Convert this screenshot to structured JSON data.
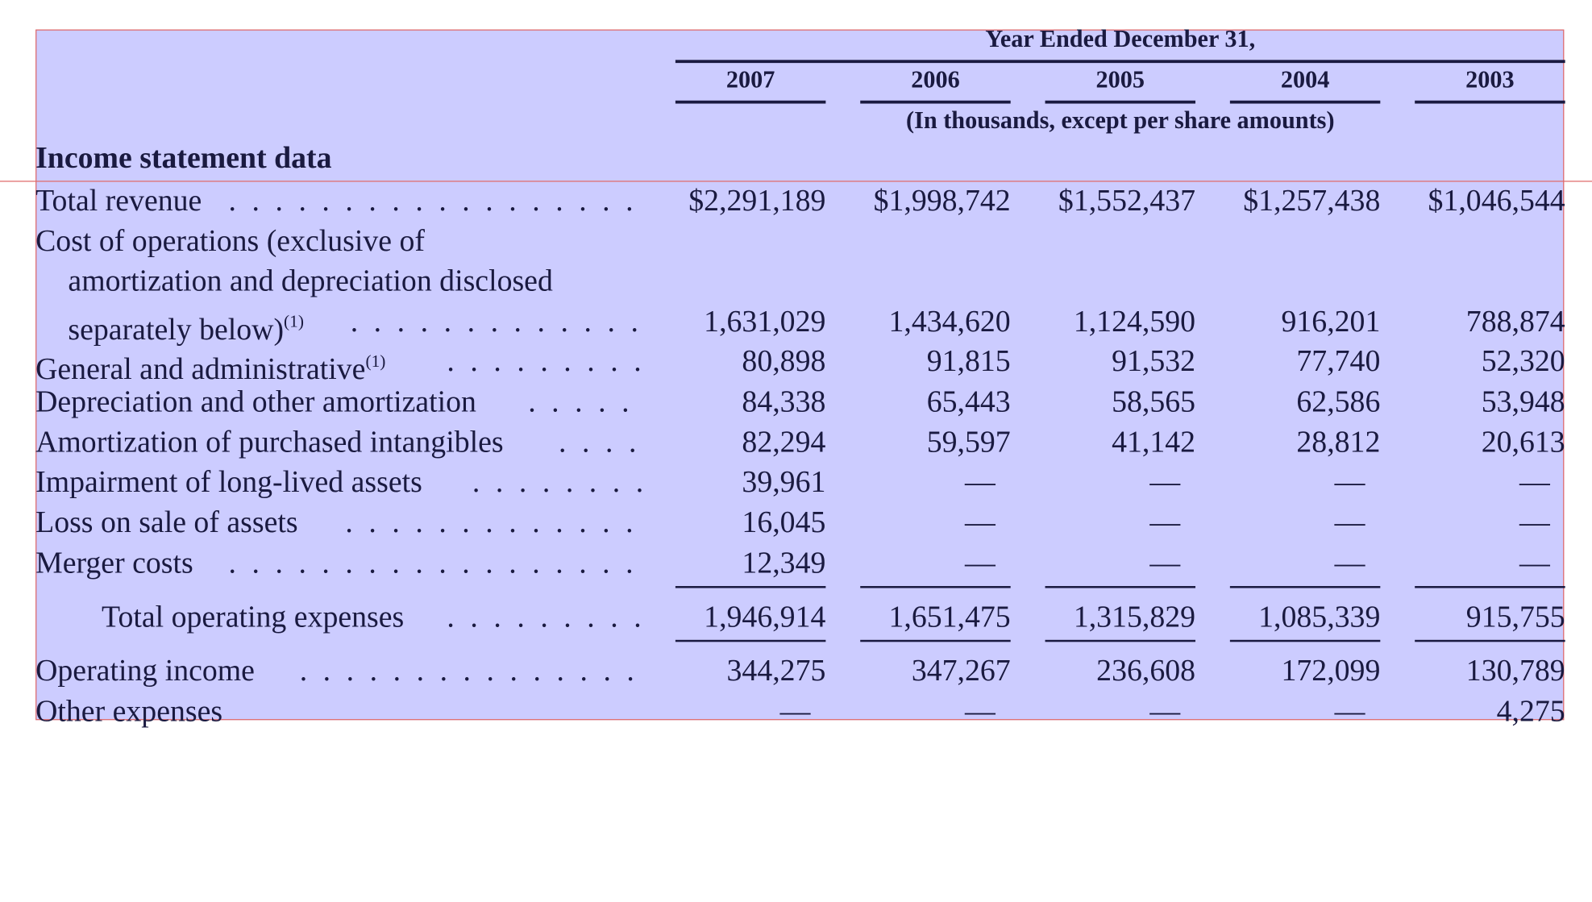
{
  "header": {
    "group_label": "Year Ended December 31,",
    "years": [
      "2007",
      "2006",
      "2005",
      "2004",
      "2003"
    ],
    "units_note": "(In thousands, except per share amounts)"
  },
  "section_title": "Income statement data",
  "rows": [
    {
      "label": "Total revenue",
      "values": [
        "$2,291,189",
        "$1,998,742",
        "$1,552,437",
        "$1,257,438",
        "$1,046,544"
      ]
    },
    {
      "label_lines": [
        "Cost of operations (exclusive of",
        "amortization and depreciation disclosed",
        "separately below)"
      ],
      "footnote": "(1)",
      "values": [
        "1,631,029",
        "1,434,620",
        "1,124,590",
        "916,201",
        "788,874"
      ]
    },
    {
      "label": "General and administrative",
      "footnote": "(1)",
      "values": [
        "80,898",
        "91,815",
        "91,532",
        "77,740",
        "52,320"
      ]
    },
    {
      "label": "Depreciation and other amortization",
      "values": [
        "84,338",
        "65,443",
        "58,565",
        "62,586",
        "53,948"
      ]
    },
    {
      "label": "Amortization of purchased intangibles",
      "values": [
        "82,294",
        "59,597",
        "41,142",
        "28,812",
        "20,613"
      ]
    },
    {
      "label": "Impairment of long-lived assets",
      "values": [
        "39,961",
        "—",
        "—",
        "—",
        "—"
      ]
    },
    {
      "label": "Loss on sale of assets",
      "values": [
        "16,045",
        "—",
        "—",
        "—",
        "—"
      ]
    },
    {
      "label": "Merger costs",
      "values": [
        "12,349",
        "—",
        "—",
        "—",
        "—"
      ]
    },
    {
      "label": "Total operating expenses",
      "values": [
        "1,946,914",
        "1,651,475",
        "1,315,829",
        "1,085,339",
        "915,755"
      ]
    },
    {
      "label": "Operating income",
      "values": [
        "344,275",
        "347,267",
        "236,608",
        "172,099",
        "130,789"
      ]
    },
    {
      "label": "Other expenses",
      "values": [
        "—",
        "—",
        "—",
        "—",
        "4,275"
      ]
    }
  ],
  "colors": {
    "highlight_fill": "#ccccff",
    "highlight_border": "#e06b6b",
    "text": "#1a1a40"
  }
}
